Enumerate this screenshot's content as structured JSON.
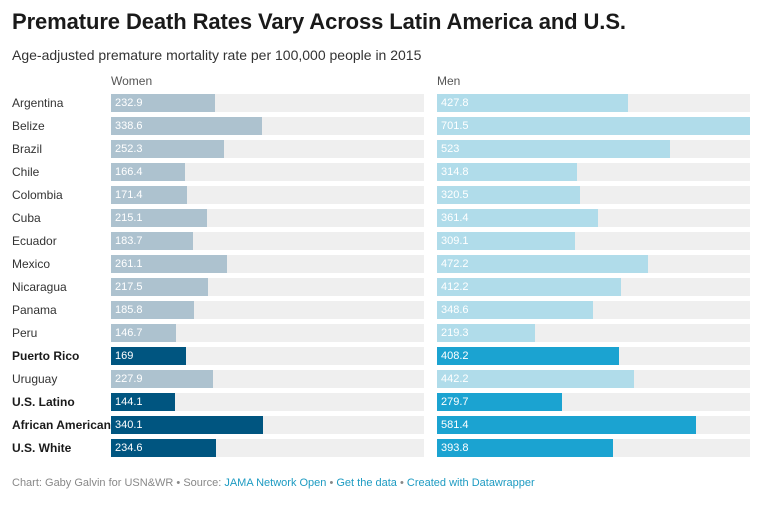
{
  "title": "Premature Death Rates Vary Across Latin America and U.S.",
  "subtitle": "Age-adjusted premature mortality rate per 100,000 people in 2015",
  "colors": {
    "women_default": "#adc2cf",
    "women_highlight": "#005580",
    "men_default": "#b0dcea",
    "men_highlight": "#1ba3d1",
    "track": "#efefef"
  },
  "chart_data": {
    "type": "bar",
    "orientation": "horizontal",
    "title": "Premature Death Rates Vary Across Latin America and U.S.",
    "subtitle": "Age-adjusted premature mortality rate per 100,000 people in 2015",
    "categories": [
      "Argentina",
      "Belize",
      "Brazil",
      "Chile",
      "Colombia",
      "Cuba",
      "Ecuador",
      "Mexico",
      "Nicaragua",
      "Panama",
      "Peru",
      "Puerto Rico",
      "Uruguay",
      "U.S. Latino",
      "African American",
      "U.S. White"
    ],
    "highlighted": [
      "Puerto Rico",
      "U.S. Latino",
      "African American",
      "U.S. White"
    ],
    "series": [
      {
        "name": "Women",
        "values": [
          232.9,
          338.6,
          252.3,
          166.4,
          171.4,
          215.1,
          183.7,
          261.1,
          217.5,
          185.8,
          146.7,
          169,
          227.9,
          144.1,
          340.1,
          234.6
        ],
        "labels": [
          "232.9",
          "338.6",
          "252.3",
          "166.4",
          "171.4",
          "215.1",
          "183.7",
          "261.1",
          "217.5",
          "185.8",
          "146.7",
          "169",
          "227.9",
          "144.1",
          "340.1",
          "234.6"
        ]
      },
      {
        "name": "Men",
        "values": [
          427.8,
          701.5,
          523,
          314.8,
          320.5,
          361.4,
          309.1,
          472.2,
          412.2,
          348.6,
          219.3,
          408.2,
          442.2,
          279.7,
          581.4,
          393.8
        ],
        "labels": [
          "427.8",
          "701.5",
          "523",
          "314.8",
          "320.5",
          "361.4",
          "309.1",
          "472.2",
          "412.2",
          "348.6",
          "219.3",
          "408.2",
          "442.2",
          "279.7",
          "581.4",
          "393.8"
        ]
      }
    ],
    "xlim": [
      0,
      701.5
    ]
  },
  "footer": {
    "prefix": "Chart: Gaby Galvin for USN&WR • Source: ",
    "source": "JAMA Network Open",
    "sep1": " • ",
    "get_data": "Get the data",
    "sep2": " • ",
    "created": "Created with Datawrapper"
  }
}
